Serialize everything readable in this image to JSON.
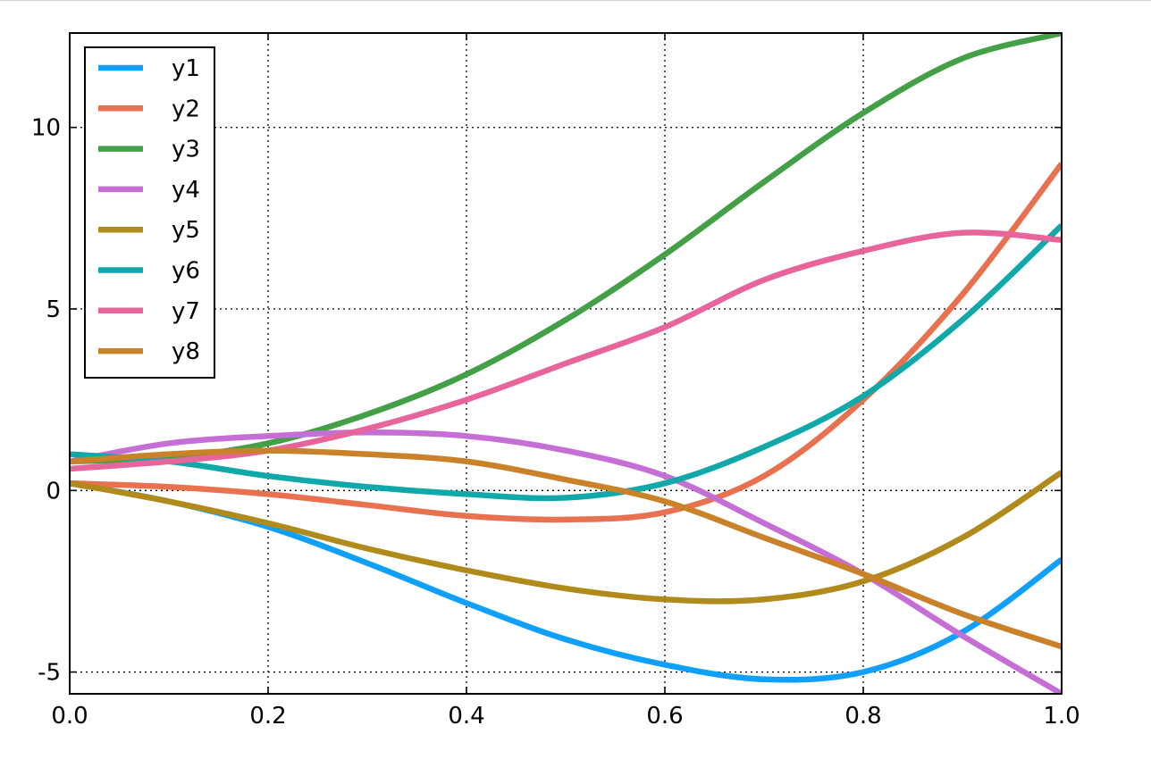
{
  "chart_data": {
    "type": "line",
    "title": "",
    "xlabel": "",
    "ylabel": "",
    "xlim": [
      0.0,
      1.0
    ],
    "ylim": [
      -5.6,
      12.6
    ],
    "grid": true,
    "legend_position": "upper-left",
    "x_ticks": [
      0.0,
      0.2,
      0.4,
      0.6,
      0.8,
      1.0
    ],
    "x_tick_labels": [
      "0.0",
      "0.2",
      "0.4",
      "0.6",
      "0.8",
      "1.0"
    ],
    "y_ticks": [
      -5,
      0,
      5,
      10
    ],
    "y_tick_labels": [
      "-5",
      "0",
      "5",
      "10"
    ],
    "x": [
      0.0,
      0.1,
      0.2,
      0.3,
      0.4,
      0.5,
      0.6,
      0.7,
      0.8,
      0.9,
      1.0
    ],
    "series": [
      {
        "name": "y1",
        "color": "#0f9ffc",
        "values": [
          0.2,
          -0.3,
          -1.0,
          -2.0,
          -3.1,
          -4.1,
          -4.8,
          -5.2,
          -5.0,
          -3.9,
          -1.9
        ]
      },
      {
        "name": "y2",
        "color": "#e8714f",
        "values": [
          0.2,
          0.1,
          -0.1,
          -0.4,
          -0.7,
          -0.8,
          -0.6,
          0.4,
          2.5,
          5.4,
          9.0
        ]
      },
      {
        "name": "y3",
        "color": "#43a047",
        "values": [
          0.8,
          0.9,
          1.3,
          2.1,
          3.2,
          4.7,
          6.5,
          8.5,
          10.4,
          11.9,
          12.6
        ]
      },
      {
        "name": "y4",
        "color": "#c56fd6",
        "values": [
          0.8,
          1.3,
          1.5,
          1.6,
          1.5,
          1.1,
          0.4,
          -0.9,
          -2.3,
          -4.0,
          -5.6
        ]
      },
      {
        "name": "y5",
        "color": "#b08a1a",
        "values": [
          0.2,
          -0.3,
          -0.9,
          -1.6,
          -2.2,
          -2.7,
          -3.0,
          -3.0,
          -2.5,
          -1.3,
          0.5
        ]
      },
      {
        "name": "y6",
        "color": "#10a8a8",
        "values": [
          1.0,
          0.8,
          0.4,
          0.1,
          -0.1,
          -0.2,
          0.2,
          1.2,
          2.6,
          4.7,
          7.3
        ]
      },
      {
        "name": "y7",
        "color": "#e8659b",
        "values": [
          0.6,
          0.8,
          1.1,
          1.7,
          2.5,
          3.5,
          4.5,
          5.8,
          6.6,
          7.1,
          6.9
        ]
      },
      {
        "name": "y8",
        "color": "#c9822a",
        "values": [
          0.8,
          1.0,
          1.1,
          1.0,
          0.8,
          0.3,
          -0.3,
          -1.3,
          -2.3,
          -3.4,
          -4.3
        ]
      }
    ]
  }
}
